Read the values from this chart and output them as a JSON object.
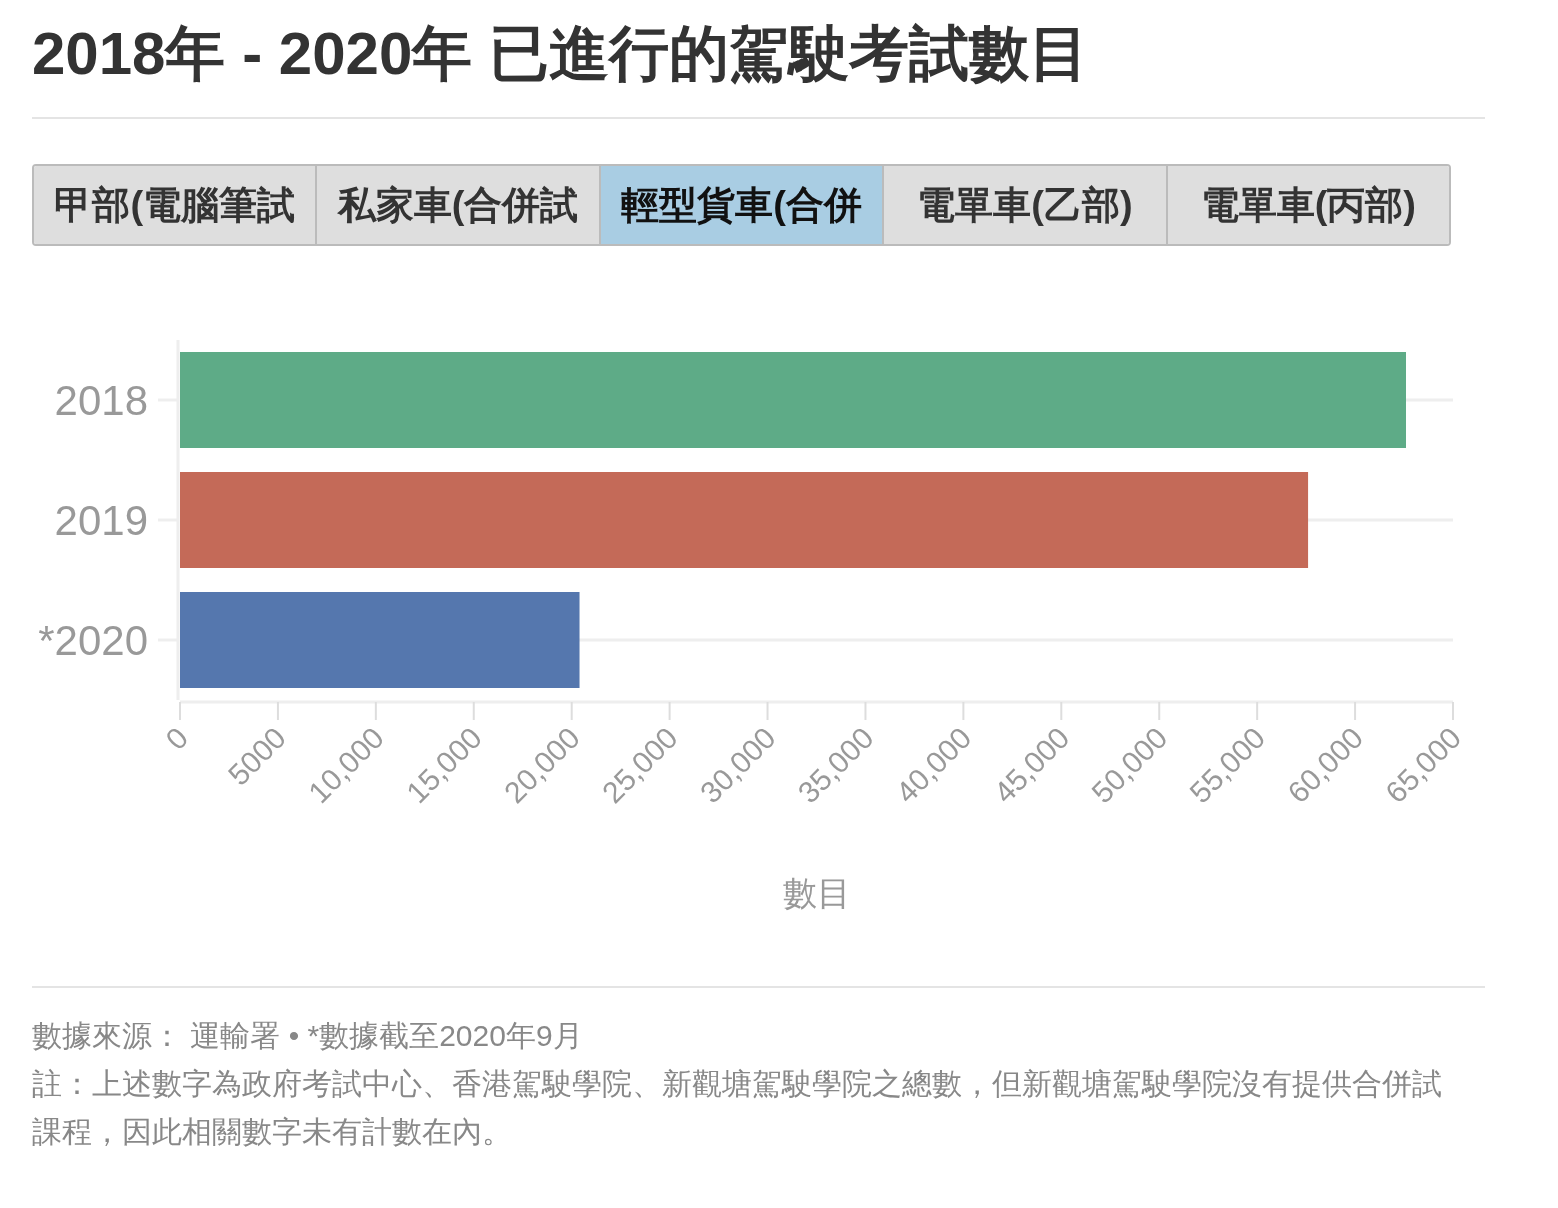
{
  "chart_data": {
    "type": "bar",
    "orientation": "horizontal",
    "title": "2018年 - 2020年 已進行的駕駛考試數目",
    "categories": [
      "2018",
      "2019",
      "*2020"
    ],
    "values": [
      62600,
      57600,
      20400
    ],
    "colors": [
      "#5eab87",
      "#c46a58",
      "#5577ae"
    ],
    "xlabel": "數目",
    "xlim": [
      0,
      65000
    ],
    "xticks": [
      0,
      5000,
      {
        "value": 10000,
        "label": "10,000"
      },
      {
        "value": 15000,
        "label": "15,000"
      },
      {
        "value": 20000,
        "label": "20,000"
      },
      {
        "value": 25000,
        "label": "25,000"
      },
      {
        "value": 30000,
        "label": "30,000"
      },
      {
        "value": 35000,
        "label": "35,000"
      },
      {
        "value": 40000,
        "label": "40,000"
      },
      {
        "value": 45000,
        "label": "45,000"
      },
      {
        "value": 50000,
        "label": "50,000"
      },
      {
        "value": 55000,
        "label": "55,000"
      },
      {
        "value": 60000,
        "label": "60,000"
      },
      {
        "value": 65000,
        "label": "65,000"
      }
    ],
    "grid": "y",
    "annotations": [
      "甲部(電腦筆試",
      "私家車(合併試",
      "輕型貨車(合併",
      "電單車(乙部)",
      "電單車(丙部)",
      "數據來源： 運輸署 • *數據截至2020年9月",
      "註：上述數字為政府考試中心、香港駕駛學院、新觀塘駕駛學院之總數，但新觀塘駕駛學院沒有提供合併試課程，因此相關數字未有計數在內。"
    ]
  }
}
